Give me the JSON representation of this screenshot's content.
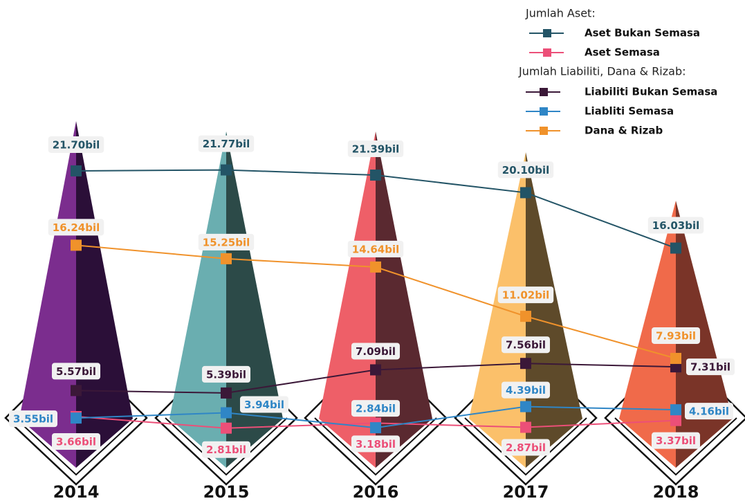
{
  "chart_data": {
    "type": "line",
    "categories": [
      "2014",
      "2015",
      "2016",
      "2017",
      "2018"
    ],
    "legend_headings": [
      "Jumlah Aset:",
      "Jumlah Liabiliti, Dana & Rizab:"
    ],
    "ylim": [
      0,
      25
    ],
    "series": [
      {
        "name": "Aset Bukan Semasa",
        "color": "#235466",
        "values": [
          21.7,
          21.77,
          21.39,
          20.1,
          16.03
        ],
        "value_labels": [
          "21.70bil",
          "21.77bil",
          "21.39bil",
          "20.10bil",
          "16.03bil"
        ]
      },
      {
        "name": "Aset Semasa",
        "color": "#ec4f78",
        "values": [
          3.66,
          2.81,
          3.18,
          2.87,
          3.37
        ],
        "value_labels": [
          "3.66bil",
          "2.81bil",
          "3.18bil",
          "2.87bil",
          "3.37bil"
        ]
      },
      {
        "name": "Liabiliti Bukan Semasa",
        "color": "#3b1838",
        "values": [
          5.57,
          5.39,
          7.09,
          7.56,
          7.31
        ],
        "value_labels": [
          "5.57bil",
          "5.39bil",
          "7.09bil",
          "7.56bil",
          "7.31bil"
        ]
      },
      {
        "name": "Liabliti Semasa",
        "color": "#2f86c6",
        "values": [
          3.55,
          3.94,
          2.84,
          4.39,
          4.16
        ],
        "value_labels": [
          "3.55bil",
          "3.94bil",
          "2.84bil",
          "4.39bil",
          "4.16bil"
        ]
      },
      {
        "name": "Dana & Rizab",
        "color": "#f0922b",
        "values": [
          16.24,
          15.25,
          14.64,
          11.02,
          7.93
        ],
        "value_labels": [
          "16.24bil",
          "15.25bil",
          "14.64bil",
          "11.02bil",
          "7.93bil"
        ]
      }
    ]
  }
}
